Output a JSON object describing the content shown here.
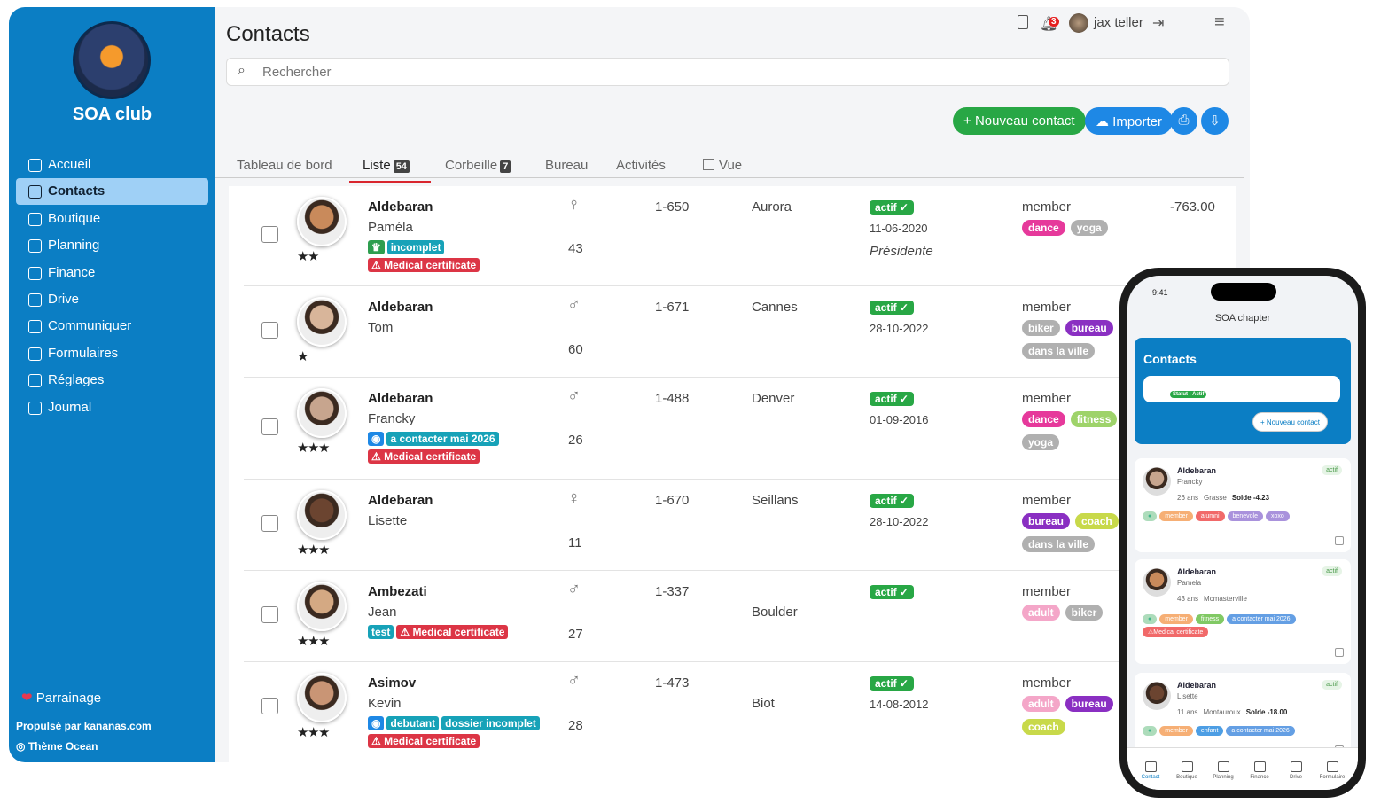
{
  "sidebar": {
    "brand": "SOA club",
    "menu": [
      "Accueil",
      "Contacts",
      "Boutique",
      "Planning",
      "Finance",
      "Drive",
      "Communiquer",
      "Formulaires",
      "Réglages",
      "Journal"
    ],
    "referral": "Parrainage",
    "powered": "Propulsé par kananas.com",
    "theme": "Thème Ocean"
  },
  "header": {
    "title": "Contacts",
    "search_placeholder": "Rechercher",
    "user": "jax teller",
    "notifications": 3
  },
  "actions": [
    "Nouveau contact",
    "Importer"
  ],
  "tabs": [
    {
      "label": "Tableau de bord"
    },
    {
      "label": "Liste",
      "count": 54
    },
    {
      "label": "Corbeille",
      "count": 7
    },
    {
      "label": "Bureau"
    },
    {
      "label": "Activités"
    },
    {
      "label": "Vue"
    }
  ],
  "contacts": [
    {
      "last": "Aldebaran",
      "first": "Paméla",
      "stars": 2,
      "tags": [
        {
          "text": "♛",
          "color": "#2e9e4f"
        },
        {
          "text": "incomplet",
          "color": "#17a2b8"
        }
      ],
      "alerts": [
        "Medical certificate"
      ],
      "gender": "♀",
      "age": 43,
      "id": "1-650",
      "city": "Aurora",
      "status": "actif",
      "date": "11-06-2020",
      "role": "Présidente",
      "type": "member",
      "labels": [
        {
          "text": "dance",
          "color": "#e6399b"
        },
        {
          "text": "yoga",
          "color": "#b0b0b0"
        }
      ],
      "balance": "-763.00"
    },
    {
      "last": "Aldebaran",
      "first": "Tom",
      "stars": 1,
      "tags": [],
      "alerts": [],
      "gender": "♂",
      "age": 60,
      "id": "1-671",
      "city": "Cannes",
      "status": "actif",
      "date": "28-10-2022",
      "type": "member",
      "labels": [
        {
          "text": "biker",
          "color": "#b0b0b0"
        },
        {
          "text": "bureau",
          "color": "#8a2fc2"
        },
        {
          "text": "dans la ville",
          "color": "#b0b0b0"
        }
      ]
    },
    {
      "last": "Aldebaran",
      "first": "Francky",
      "stars": 3,
      "tags": [
        {
          "text": "◉",
          "color": "#1e88e5"
        },
        {
          "text": "a contacter mai 2026",
          "color": "#17a2b8"
        }
      ],
      "alerts": [
        "Medical certificate"
      ],
      "gender": "♂",
      "age": 26,
      "id": "1-488",
      "city": "Denver",
      "status": "actif",
      "date": "01-09-2016",
      "type": "member",
      "labels": [
        {
          "text": "dance",
          "color": "#e6399b"
        },
        {
          "text": "fitness",
          "color": "#9ed36a"
        },
        {
          "text": "yoga",
          "color": "#b0b0b0"
        }
      ]
    },
    {
      "last": "Aldebaran",
      "first": "Lisette",
      "stars": 3,
      "tags": [],
      "alerts": [],
      "gender": "♀",
      "age": 11,
      "id": "1-670",
      "city": "Seillans",
      "status": "actif",
      "date": "28-10-2022",
      "type": "member",
      "labels": [
        {
          "text": "bureau",
          "color": "#8a2fc2"
        },
        {
          "text": "coach",
          "color": "#c8d94a"
        },
        {
          "text": "dans la ville",
          "color": "#b0b0b0"
        }
      ]
    },
    {
      "last": "Ambezati",
      "first": "Jean",
      "stars": 3,
      "tags": [
        {
          "text": "test",
          "color": "#17a2b8"
        }
      ],
      "alerts": [
        "Medical certificate"
      ],
      "gender": "♂",
      "age": 27,
      "id": "1-337",
      "city": "Boulder",
      "status": "actif",
      "type": "member",
      "labels": [
        {
          "text": "adult",
          "color": "#f4a6c8"
        },
        {
          "text": "biker",
          "color": "#b0b0b0"
        }
      ]
    },
    {
      "last": "Asimov",
      "first": "Kevin",
      "stars": 3,
      "tags": [
        {
          "text": "◉",
          "color": "#1e88e5"
        },
        {
          "text": "debutant",
          "color": "#17a2b8"
        },
        {
          "text": "dossier incomplet",
          "color": "#17a2b8"
        }
      ],
      "alerts": [
        "Medical certificate"
      ],
      "gender": "♂",
      "age": 28,
      "id": "1-473",
      "city": "Biot",
      "status": "actif",
      "date": "14-08-2012",
      "type": "member",
      "labels": [
        {
          "text": "adult",
          "color": "#f4a6c8"
        },
        {
          "text": "bureau",
          "color": "#8a2fc2"
        },
        {
          "text": "coach",
          "color": "#c8d94a"
        }
      ]
    }
  ],
  "phone": {
    "time": "9:41",
    "app": "SOA chapter",
    "title": "Contacts",
    "filter": "Statut : Actif",
    "new_contact": "Nouveau contact",
    "cards": [
      {
        "last": "Aldebaran",
        "first": "Francky",
        "info": [
          "26 ans",
          "Grasse",
          "Solde -4.23"
        ],
        "status": "actif",
        "tags": [
          {
            "text": "member",
            "color": "#f5a25d"
          },
          {
            "text": "alumni",
            "color": "#ef4f4f"
          },
          {
            "text": "benevole",
            "color": "#9b7fd6"
          },
          {
            "text": "xoxo",
            "color": "#9b7fd6"
          }
        ]
      },
      {
        "last": "Aldebaran",
        "first": "Pamela",
        "info": [
          "43 ans",
          "Mcmasterville"
        ],
        "status": "actif",
        "tags": [
          {
            "text": "member",
            "color": "#f5a25d"
          },
          {
            "text": "fitness",
            "color": "#6cc04a"
          },
          {
            "text": "a contacter mai 2026",
            "color": "#4a8fe0"
          },
          {
            "text": "⚠Medical certificate",
            "color": "#ef4f4f"
          }
        ]
      },
      {
        "last": "Aldebaran",
        "first": "Lisette",
        "info": [
          "11 ans",
          "Montauroux",
          "Solde -18.00"
        ],
        "status": "actif",
        "tags": [
          {
            "text": "member",
            "color": "#f5a25d"
          },
          {
            "text": "enfant",
            "color": "#2f8ee0"
          },
          {
            "text": "a contacter mai 2026",
            "color": "#4a8fe0"
          }
        ]
      }
    ],
    "nav": [
      "Contact",
      "Boutique",
      "Planning",
      "Finance",
      "Drive",
      "Formulaire"
    ]
  }
}
